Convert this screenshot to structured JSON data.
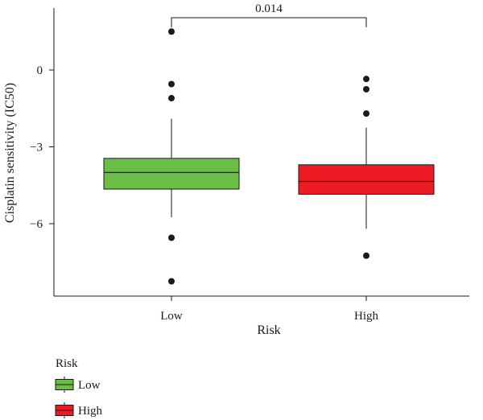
{
  "chart_data": {
    "type": "boxplot",
    "xlabel": "Risk",
    "ylabel": "Cisplatin sensitivity (IC50)",
    "ylim": [
      -8.6,
      2.5
    ],
    "yticks": [
      0,
      -3,
      -6
    ],
    "ytick_labels": [
      "0",
      "−3",
      "−6"
    ],
    "categories": [
      "Low",
      "High"
    ],
    "boxes": [
      {
        "group": "Low",
        "color": "#6abd45",
        "whisker_low": -5.75,
        "q1": -4.65,
        "median": -4.0,
        "q3": -3.45,
        "whisker_high": -1.9,
        "outliers": [
          1.5,
          -0.55,
          -1.1,
          -6.55,
          -8.25
        ]
      },
      {
        "group": "High",
        "color": "#ed1c24",
        "whisker_low": -6.2,
        "q1": -4.85,
        "median": -4.35,
        "q3": -3.7,
        "whisker_high": -2.25,
        "outliers": [
          -0.35,
          -0.75,
          -1.7,
          -7.25
        ]
      }
    ],
    "annotation": {
      "text": "0.014",
      "between": [
        "Low",
        "High"
      ]
    },
    "legend": {
      "title": "Risk",
      "entries": [
        {
          "label": "Low",
          "color": "#6abd45"
        },
        {
          "label": "High",
          "color": "#ed1c24"
        }
      ]
    }
  }
}
